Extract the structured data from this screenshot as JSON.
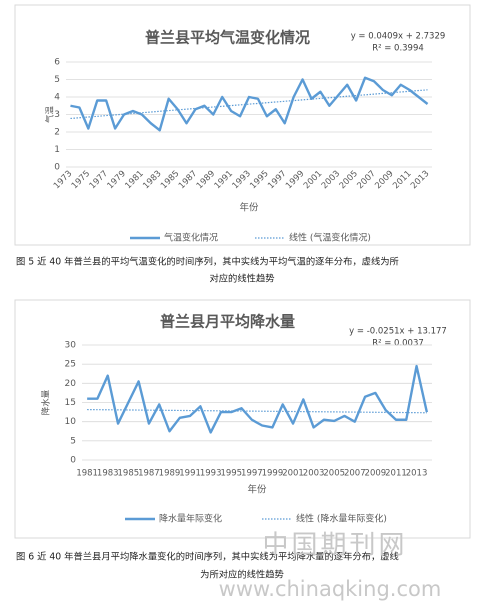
{
  "chart_data": [
    {
      "type": "line",
      "title": "普兰县平均气温变化情况",
      "equation": "y = 0.0409x + 2.7329",
      "r2": "R² = 0.3994",
      "x_label": "年份",
      "y_label": "气温",
      "categories": [
        "1973",
        null,
        "1975",
        null,
        "1977",
        null,
        "1979",
        null,
        "1981",
        null,
        "1983",
        null,
        "1985",
        null,
        "1987",
        null,
        "1989",
        null,
        "1991",
        null,
        "1993",
        null,
        "1995",
        null,
        "1997",
        null,
        "1999",
        null,
        "2001",
        null,
        "2003",
        null,
        "2005",
        null,
        "2007",
        null,
        "2009",
        null,
        "2011",
        null,
        "2013"
      ],
      "series": [
        {
          "name": "气温变化情况",
          "color": "#5b9bd5",
          "values": [
            3.5,
            3.4,
            2.2,
            3.8,
            3.8,
            2.2,
            3.0,
            3.2,
            3.0,
            2.5,
            2.1,
            3.9,
            3.3,
            2.5,
            3.3,
            3.5,
            3.0,
            4.0,
            3.2,
            2.9,
            4.0,
            3.9,
            2.9,
            3.3,
            2.5,
            4.0,
            5.0,
            3.9,
            4.3,
            3.5,
            4.1,
            4.7,
            3.8,
            5.1,
            4.9,
            4.4,
            4.1,
            4.7,
            4.4,
            4.0,
            3.6
          ]
        },
        {
          "name": "线性 (气温变化情况)",
          "color": "#5b9bd5",
          "trend": {
            "slope": 0.0409,
            "intercept": 2.7329
          }
        }
      ],
      "ylim": [
        0,
        6
      ],
      "yticks": [
        0,
        1,
        2,
        3,
        4,
        5,
        6
      ],
      "grid": true
    },
    {
      "type": "line",
      "title": "普兰县月平均降水量",
      "equation": "y = -0.0251x + 13.177",
      "r2": "R² = 0.0037",
      "x_label": "年份",
      "y_label": "降水量",
      "categories": [
        "1981",
        null,
        "1983",
        null,
        "1985",
        null,
        "1987",
        null,
        "1989",
        null,
        "1991",
        null,
        "1993",
        null,
        "1995",
        null,
        "1997",
        null,
        "1999",
        null,
        "2001",
        null,
        "2003",
        null,
        "2005",
        null,
        "2007",
        null,
        "2009",
        null,
        "2011",
        null,
        "2013",
        null
      ],
      "series": [
        {
          "name": "降水量年际变化",
          "color": "#5b9bd5",
          "values": [
            16,
            16,
            22,
            9.5,
            15,
            20.5,
            9.5,
            14.5,
            7.5,
            11,
            11.5,
            14,
            7.2,
            12.5,
            12.5,
            13.5,
            10.5,
            9,
            8.5,
            14.5,
            9.5,
            15.8,
            8.5,
            10.5,
            10.2,
            11.5,
            10,
            16.5,
            17.5,
            13,
            10.5,
            10.5,
            24.5,
            12.5
          ]
        },
        {
          "name": "线性 (降水量年际变化)",
          "color": "#5b9bd5",
          "trend": {
            "slope": -0.0251,
            "intercept": 13.177
          }
        }
      ],
      "ylim": [
        0,
        30
      ],
      "yticks": [
        0,
        5,
        10,
        15,
        20,
        25,
        30
      ],
      "grid": true
    }
  ],
  "captions": [
    [
      "图 5 近 40 年普兰县的平均气温变化的时间序列，其中实线为平均气温的逐年分布，虚线为所",
      "对应的线性趋势"
    ],
    [
      "图 6 近 40 年普兰县月平均降水量变化的时间序列，其中实线为平均降水量的逐年分布，虚线",
      "为所对应的线性趋势"
    ]
  ],
  "watermark": {
    "name": "中国期刊网",
    "url": "www.chinaqking.com"
  }
}
